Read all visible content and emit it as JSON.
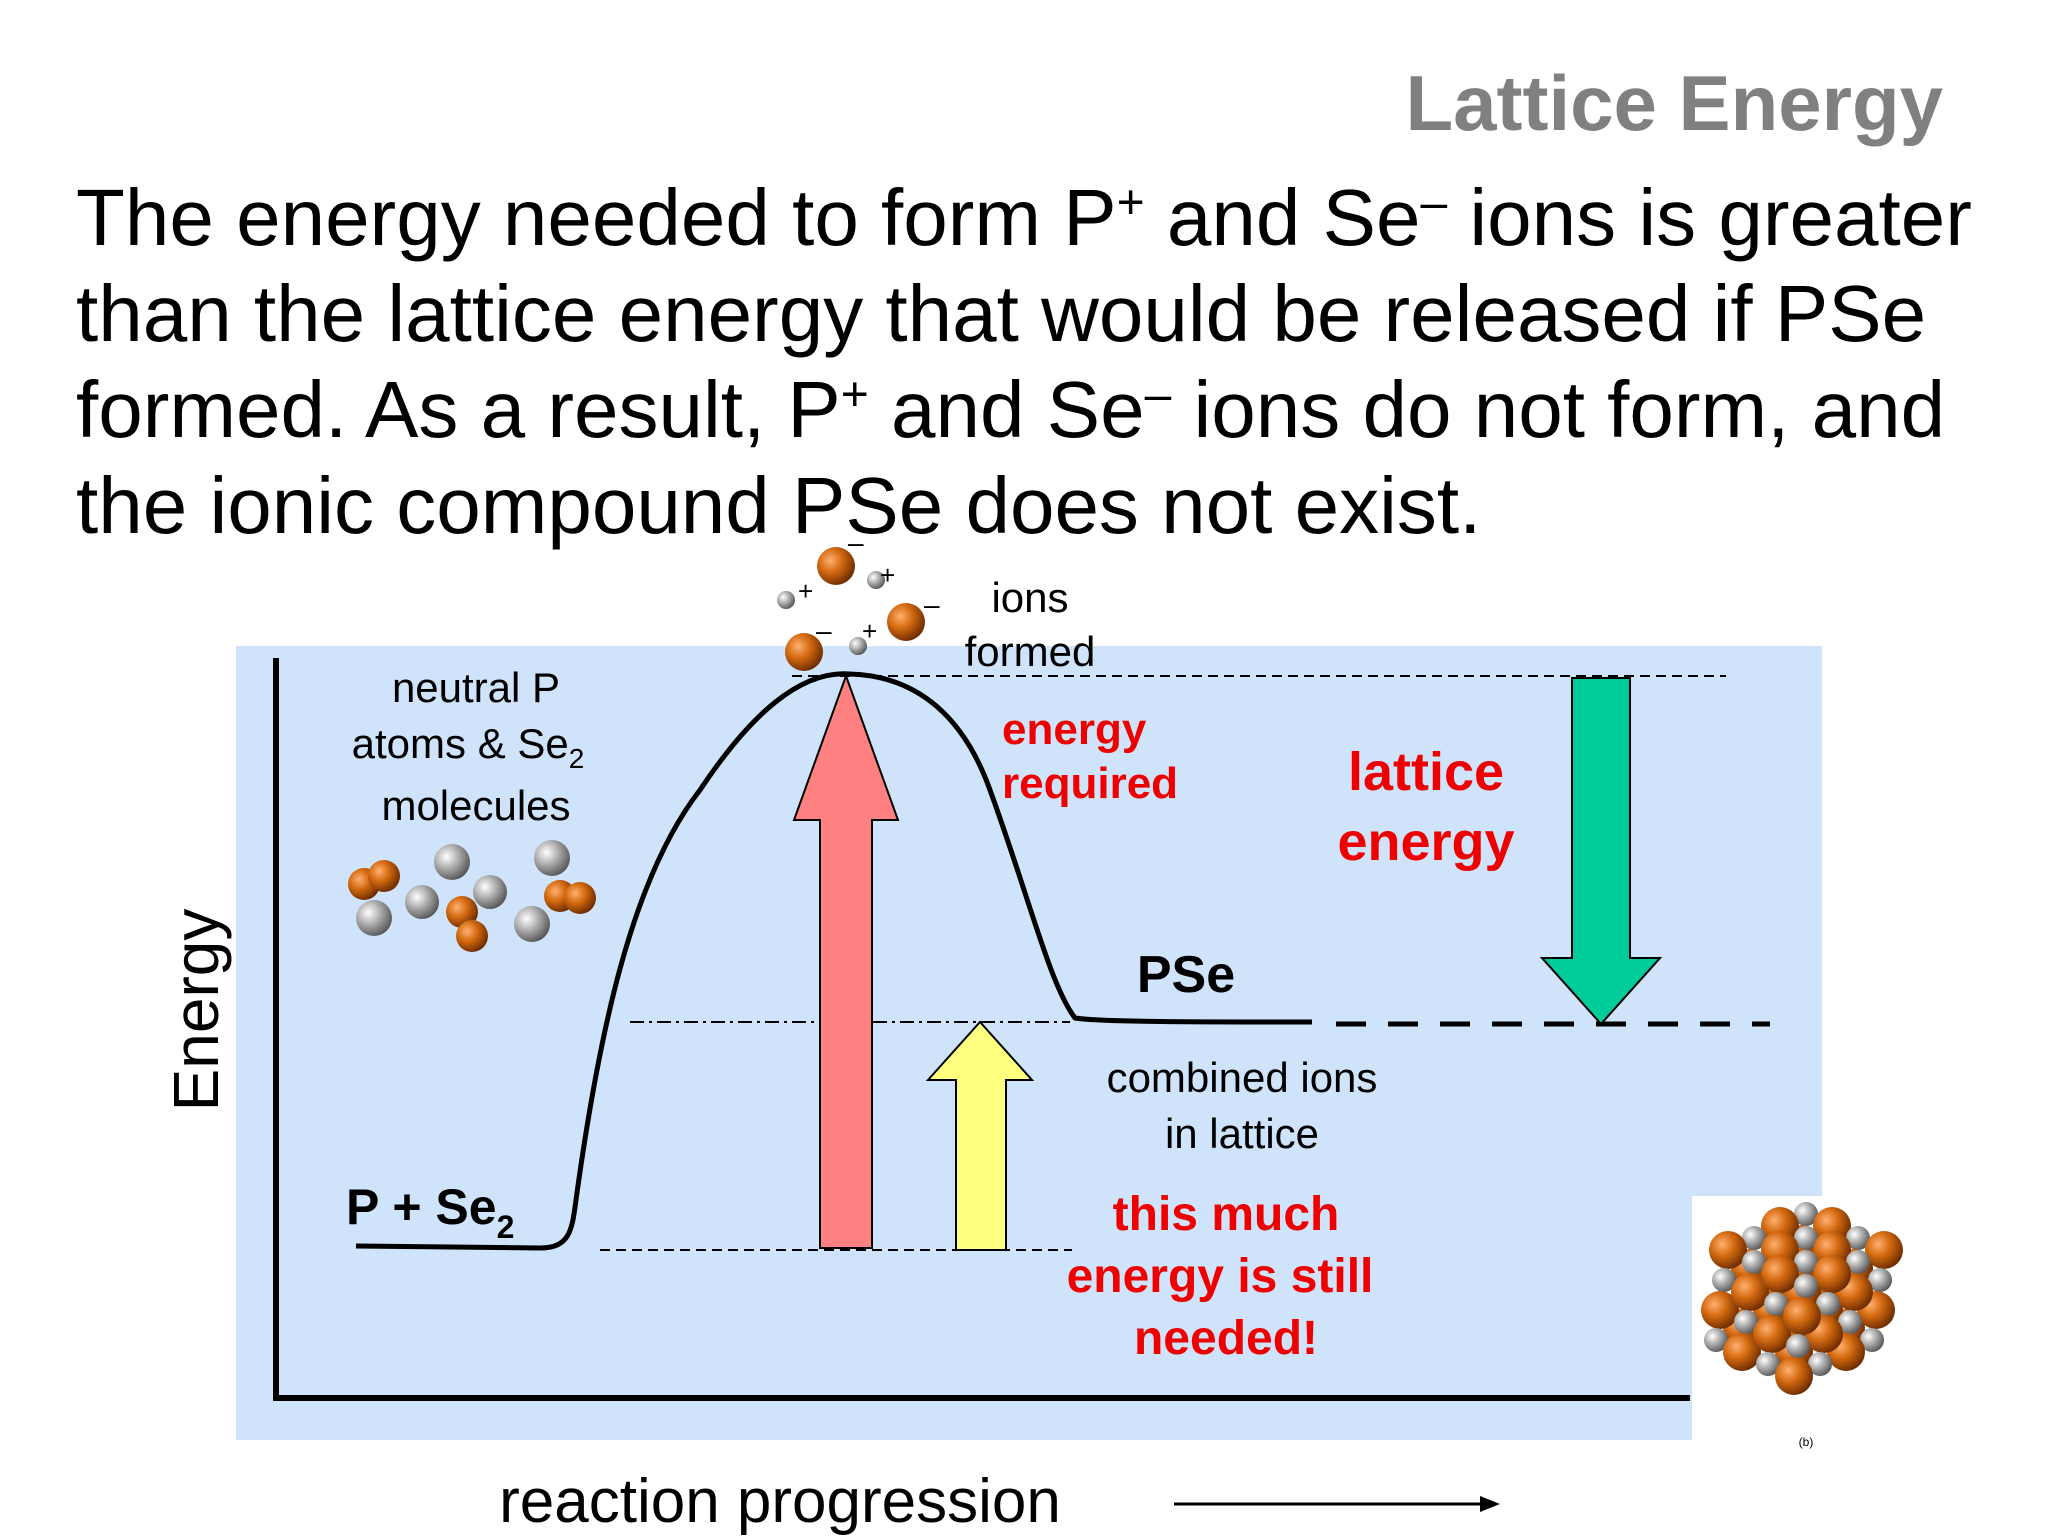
{
  "title": "Lattice Energy",
  "paragraph": {
    "line1": {
      "a": "The energy needed to form P",
      "sup1": "+",
      "b": " and Se",
      "sup2": "–",
      "c": " ions is greater"
    },
    "line2": "than the lattice energy that would be released if PSe",
    "line3": {
      "a": "formed.  As a result, P",
      "sup1": "+",
      "b": " and Se",
      "sup2": "–",
      "c": " ions do not form, and"
    },
    "line4": "the ionic compound PSe does not exist."
  },
  "diagram": {
    "y_axis_label": "Energy",
    "x_axis_label": "reaction progression",
    "neutral_label": {
      "line1": "neutral P",
      "line2a": "atoms & Se",
      "line2sub": "2",
      "line3": "molecules"
    },
    "reactants_label": {
      "main": "P + Se",
      "sub": "2"
    },
    "ions_label": {
      "line1": "ions",
      "line2": "formed"
    },
    "energy_required": {
      "line1": "energy",
      "line2": "required"
    },
    "lattice_energy": {
      "line1": "lattice",
      "line2": "energy"
    },
    "product_label": "PSe",
    "combined_label": {
      "line1": "combined ions",
      "line2": "in lattice"
    },
    "still_needed": {
      "line1": "this much",
      "line2": "energy is still",
      "line3": "needed!"
    },
    "ion_charges": [
      "+",
      "–",
      "+",
      "–",
      "–",
      "+"
    ],
    "lattice_caption": "(b)",
    "colors": {
      "background": "#cfe3fa",
      "red_arrow": "#ff8080",
      "yellow_arrow": "#ffff80",
      "green_arrow": "#00cc99",
      "red_text": "#ee0000",
      "atom_orange": "#c85a00",
      "atom_gray": "#9a9a9a"
    }
  }
}
